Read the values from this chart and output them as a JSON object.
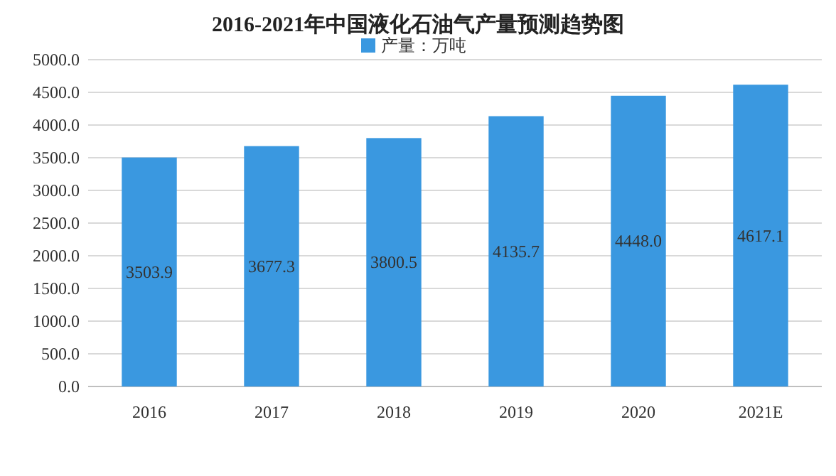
{
  "chart_data": {
    "type": "bar",
    "title": "2016-2021年中国液化石油气产量预测趋势图",
    "categories": [
      "2016",
      "2017",
      "2018",
      "2019",
      "2020",
      "2021E"
    ],
    "series": [
      {
        "name": "产量：万吨",
        "color": "#3a98e0",
        "values": [
          3503.9,
          3677.3,
          3800.5,
          4135.7,
          4448.0,
          4617.1
        ],
        "value_labels": [
          "3503.9",
          "3677.3",
          "3800.5",
          "4135.7",
          "4448.0",
          "4617.1"
        ]
      }
    ],
    "ylim": [
      0,
      5000
    ],
    "yticks": [
      {
        "value": 0,
        "label": "0.0"
      },
      {
        "value": 500,
        "label": "500.0"
      },
      {
        "value": 1000,
        "label": "1000.0"
      },
      {
        "value": 1500,
        "label": "1500.0"
      },
      {
        "value": 2000,
        "label": "2000.0"
      },
      {
        "value": 2500,
        "label": "2500.0"
      },
      {
        "value": 3000,
        "label": "3000.0"
      },
      {
        "value": 3500,
        "label": "3500.0"
      },
      {
        "value": 4000,
        "label": "4000.0"
      },
      {
        "value": 4500,
        "label": "4500.0"
      },
      {
        "value": 5000,
        "label": "5000.0"
      }
    ],
    "grid": "y",
    "legend": "top"
  }
}
